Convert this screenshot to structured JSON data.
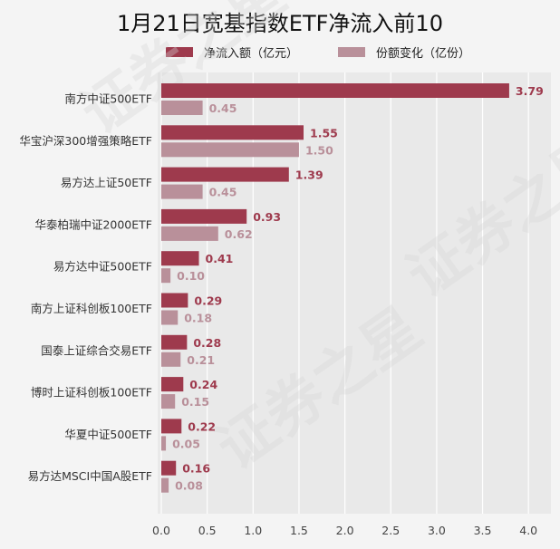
{
  "title": "1月21日宽基指数ETF净流入前10",
  "colors": {
    "background": "#f4f4f4",
    "plot_background": "#e9e9e9",
    "net_inflow": "#9e3a4d",
    "share_change": "#b9909a"
  },
  "chart_data": {
    "type": "bar",
    "orientation": "horizontal",
    "title": "1月21日宽基指数ETF净流入前10",
    "categories": [
      "南方中证500ETF",
      "华宝沪深300增强策略ETF",
      "易方达上证50ETF",
      "华泰柏瑞中证2000ETF",
      "易方达中证500ETF",
      "南方上证科创板100ETF",
      "国泰上证综合交易ETF",
      "博时上证科创板100ETF",
      "华夏中证500ETF",
      "易方达MSCI中国A股ETF"
    ],
    "series": [
      {
        "name": "净流入额（亿元）",
        "values": [
          3.79,
          1.55,
          1.39,
          0.93,
          0.41,
          0.29,
          0.28,
          0.24,
          0.22,
          0.16
        ],
        "labels": [
          "3.79",
          "1.55",
          "1.39",
          "0.93",
          "0.41",
          "0.29",
          "0.28",
          "0.24",
          "0.22",
          "0.16"
        ]
      },
      {
        "name": "份额变化（亿份）",
        "values": [
          0.45,
          1.5,
          0.45,
          0.62,
          0.1,
          0.18,
          0.21,
          0.15,
          0.05,
          0.08
        ],
        "labels": [
          "0.45",
          "1.50",
          "0.45",
          "0.62",
          "0.10",
          "0.18",
          "0.21",
          "0.15",
          "0.05",
          "0.08"
        ]
      }
    ],
    "xlim": [
      0,
      4.2
    ],
    "xticks": [
      "0.0",
      "0.5",
      "1.0",
      "1.5",
      "2.0",
      "2.5",
      "3.0",
      "3.5",
      "4.0"
    ],
    "grid": true,
    "legend_position": "top"
  },
  "watermark": [
    "证券之星",
    "证券之星",
    "证券之星"
  ]
}
